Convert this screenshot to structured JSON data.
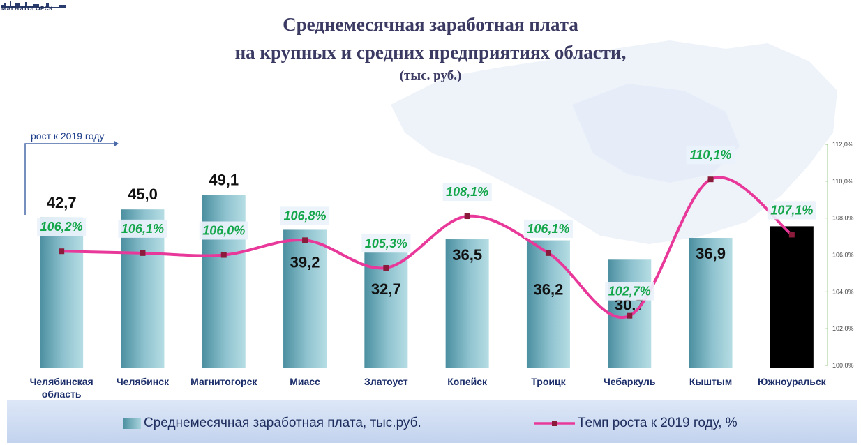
{
  "logo": {
    "text": "МАГНИТОГОРСК"
  },
  "title": {
    "line1": "Среднемесячная заработная плата",
    "line2": "на крупных и средних предприятиях области,",
    "units": "(тыс. руб.)"
  },
  "callout": {
    "text": "рост к 2019 году"
  },
  "legend": {
    "bars_label": "Среднемесячная заработная плата, тыс.руб.",
    "line_label": "Темп роста к  2019 году, %"
  },
  "colors": {
    "bar_gradient_dark": "#4b8fa0",
    "bar_gradient_light": "#a8d3dc",
    "highlight_bar": "#000000",
    "line": "#e8399a",
    "marker": "#8a1b3a",
    "rate_text": "#14a64a",
    "category_text": "#1d2f6b"
  },
  "chart_data": {
    "type": "bar",
    "categories": [
      "Челябинская область",
      "Челябинск",
      "Магнитогорск",
      "Миасс",
      "Златоуст",
      "Копейск",
      "Троицк",
      "Чебаркуль",
      "Кыштым",
      "Южноуральск"
    ],
    "category_lines": [
      [
        "Челябинская",
        "область"
      ],
      [
        "Челябинск"
      ],
      [
        "Магнитогорск"
      ],
      [
        "Миасс"
      ],
      [
        "Златоуст"
      ],
      [
        "Копейск"
      ],
      [
        "Троицк"
      ],
      [
        "Чебаркуль"
      ],
      [
        "Кыштым"
      ],
      [
        "Южноуральск"
      ]
    ],
    "series": [
      {
        "name": "Среднемесячная заработная плата, тыс.руб.",
        "type": "bar",
        "values": [
          42.7,
          45.0,
          49.1,
          39.2,
          32.7,
          36.5,
          36.2,
          30.7,
          36.9,
          40.2
        ],
        "labels": [
          "42,7",
          "45,0",
          "49,1",
          "39,2",
          "32,7",
          "36,5",
          "36,2",
          "30,7",
          "36,9",
          ""
        ],
        "highlight_index": 9
      },
      {
        "name": "Темп роста к  2019 году, %",
        "type": "line",
        "axis": "right",
        "values": [
          106.2,
          106.1,
          106.0,
          106.8,
          105.3,
          108.1,
          106.1,
          102.7,
          110.1,
          107.1
        ],
        "labels": [
          "106,2%",
          "106,1%",
          "106,0%",
          "106,8%",
          "105,3%",
          "108,1%",
          "106,1%",
          "102,7%",
          "110,1%",
          "107,1%"
        ]
      }
    ],
    "y2_ticks": [
      "100,0%",
      "102,0%",
      "104,0%",
      "106,0%",
      "108,0%",
      "110,0%",
      "112,0%"
    ],
    "y2lim": [
      100,
      112
    ],
    "legend_position": "bottom"
  }
}
